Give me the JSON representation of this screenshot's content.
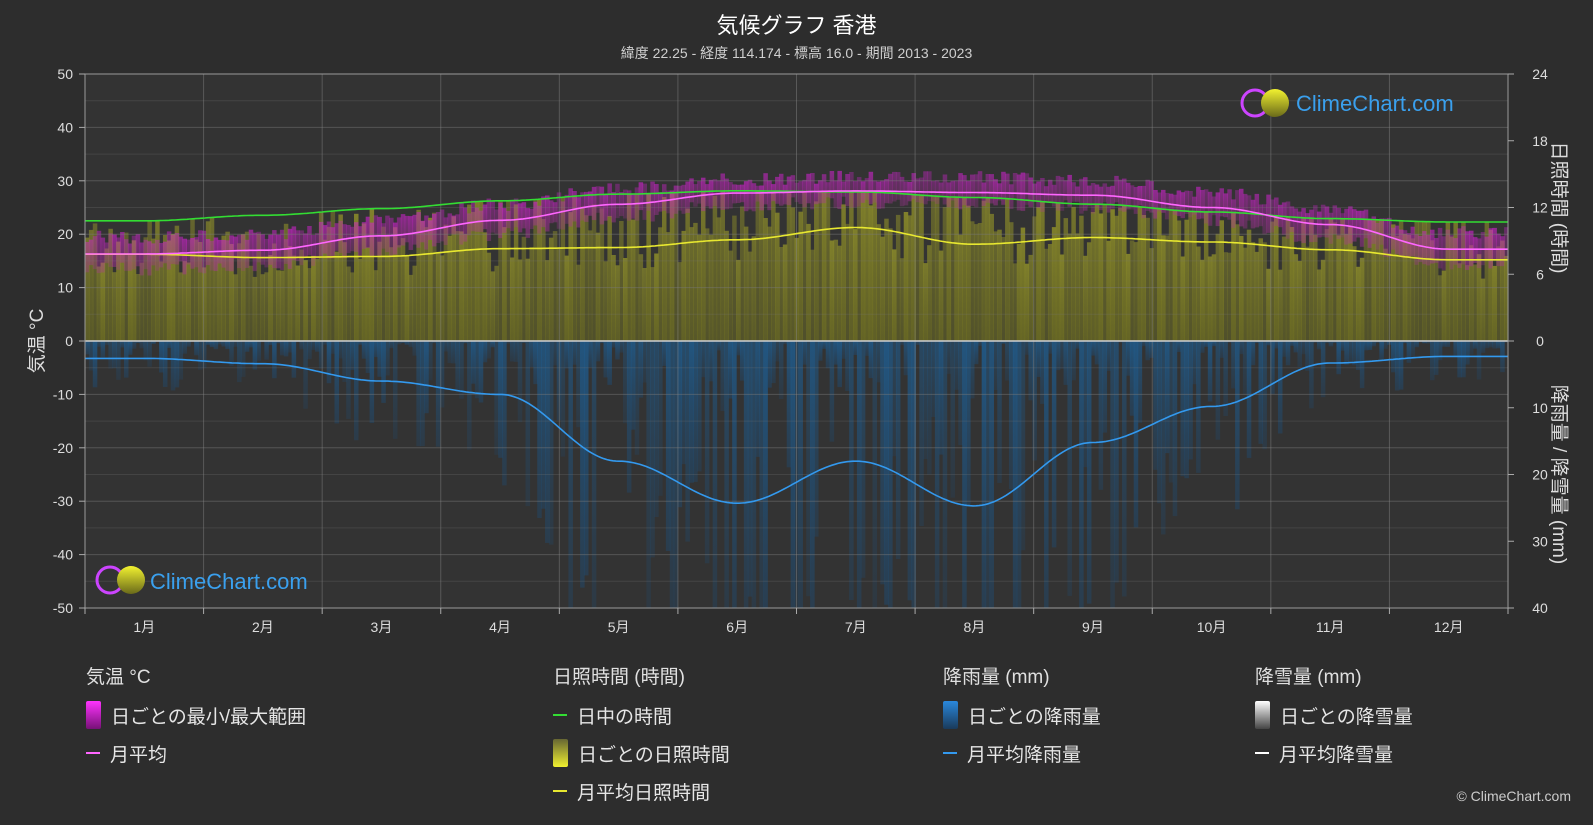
{
  "header": {
    "title": "気候グラフ 香港",
    "subtitle": "緯度 22.25 - 経度 114.174 - 標高 16.0 - 期間 2013 - 2023"
  },
  "watermark": {
    "text": "ClimeChart.com"
  },
  "copyright": "© ClimeChart.com",
  "chart_data": {
    "type": "line",
    "months": [
      "1月",
      "2月",
      "3月",
      "4月",
      "5月",
      "6月",
      "7月",
      "8月",
      "9月",
      "10月",
      "11月",
      "12月"
    ],
    "axes": {
      "left": {
        "label": "気温 °C",
        "min": -50,
        "max": 50,
        "ticks": [
          50,
          40,
          30,
          20,
          10,
          0,
          -10,
          -20,
          -30,
          -40,
          -50
        ]
      },
      "right_top": {
        "label": "日照時間 (時間)",
        "min": 0,
        "max": 24,
        "ticks": [
          24,
          18,
          12,
          6,
          0
        ]
      },
      "right_bottom": {
        "label": "降雨量 / 降雪量 (mm)",
        "min": 0,
        "max": 40,
        "ticks": [
          0,
          10,
          20,
          30,
          40
        ]
      }
    },
    "series": {
      "temp_monthly_avg": {
        "name": "月平均",
        "color": "#ff66ff",
        "values": [
          16.3,
          17.0,
          19.7,
          22.6,
          25.6,
          27.7,
          28.1,
          27.8,
          27.3,
          25.0,
          21.8,
          17.2
        ]
      },
      "temp_daily_max": {
        "values": [
          19.5,
          20.0,
          22.8,
          25.5,
          28.5,
          30.2,
          30.8,
          30.6,
          30.0,
          27.8,
          24.6,
          20.3
        ]
      },
      "temp_daily_min": {
        "values": [
          13.5,
          14.2,
          17.0,
          20.0,
          23.2,
          25.5,
          26.0,
          25.8,
          25.0,
          22.6,
          19.0,
          14.3
        ]
      },
      "daylight_hours": {
        "name": "日中の時間",
        "color": "#33dd33",
        "values": [
          10.8,
          11.3,
          11.9,
          12.6,
          13.2,
          13.5,
          13.4,
          12.9,
          12.3,
          11.6,
          11.0,
          10.7
        ]
      },
      "sunshine_monthly_avg": {
        "name": "月平均日照時間",
        "color": "#e8e830",
        "values": [
          7.8,
          7.5,
          7.6,
          8.3,
          8.4,
          9.1,
          10.2,
          8.7,
          9.3,
          8.9,
          8.2,
          7.3
        ]
      },
      "rain_monthly_avg": {
        "name": "月平均降雨量",
        "color": "#3399ee",
        "values": [
          2.6,
          3.4,
          6.0,
          8.0,
          18.0,
          24.3,
          18.0,
          24.7,
          15.2,
          9.8,
          3.3,
          2.3
        ]
      }
    },
    "legend": [
      {
        "heading": "気温 °C",
        "items": [
          {
            "kind": "box",
            "label": "日ごとの最小/最大範囲",
            "color": "#dd22dd"
          },
          {
            "kind": "line",
            "label": "月平均",
            "color": "#ff66ff"
          }
        ]
      },
      {
        "heading": "日照時間 (時間)",
        "items": [
          {
            "kind": "line",
            "label": "日中の時間",
            "color": "#33dd33"
          },
          {
            "kind": "box",
            "label": "日ごとの日照時間",
            "color": "#c8c830"
          },
          {
            "kind": "line",
            "label": "月平均日照時間",
            "color": "#e8e830"
          }
        ]
      },
      {
        "heading": "降雨量 (mm)",
        "items": [
          {
            "kind": "box",
            "label": "日ごとの降雨量",
            "color": "#2a6fb0"
          },
          {
            "kind": "line",
            "label": "月平均降雨量",
            "color": "#3399ee"
          }
        ]
      },
      {
        "heading": "降雪量 (mm)",
        "items": [
          {
            "kind": "box",
            "label": "日ごとの降雪量",
            "color": "#cccccc"
          },
          {
            "kind": "line",
            "label": "月平均降雪量",
            "color": "#ffffff"
          }
        ]
      }
    ]
  }
}
